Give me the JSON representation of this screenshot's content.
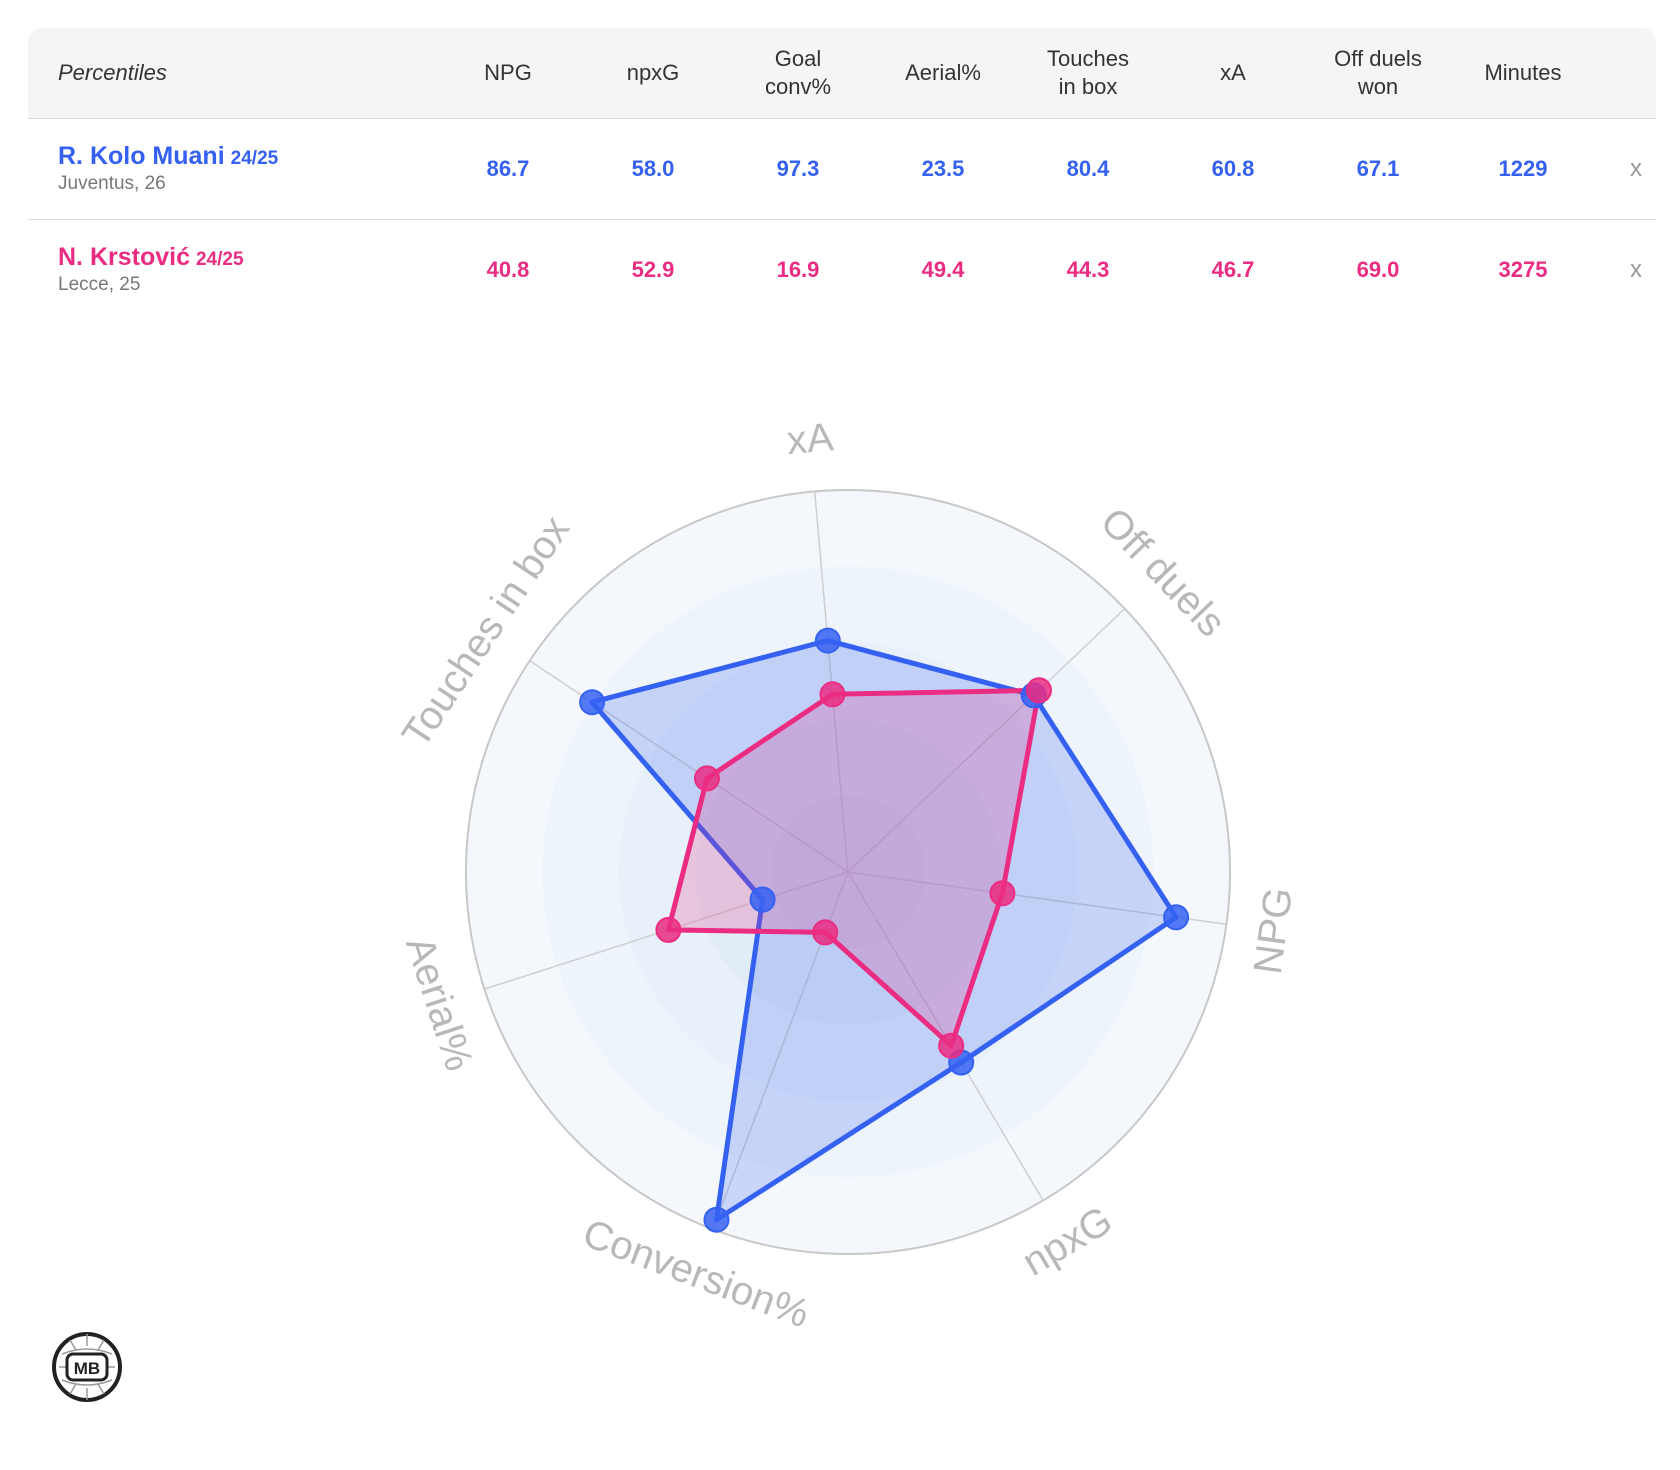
{
  "table": {
    "label_header": "Percentiles",
    "columns": [
      "NPG",
      "npxG",
      "Goal\nconv%",
      "Aerial%",
      "Touches\nin box",
      "xA",
      "Off duels\nwon",
      "Minutes"
    ],
    "remove_label": "x",
    "players": [
      {
        "name": "R. Kolo Muani",
        "season": "24/25",
        "club": "Juventus, 26",
        "color": "#3561f2",
        "values": [
          "86.7",
          "58.0",
          "97.3",
          "23.5",
          "80.4",
          "60.8",
          "67.1",
          "1229"
        ]
      },
      {
        "name": "N. Krstović",
        "season": "24/25",
        "club": "Lecce, 25",
        "color": "#ea2d82",
        "values": [
          "40.8",
          "52.9",
          "16.9",
          "49.4",
          "44.3",
          "46.7",
          "69.0",
          "3275"
        ]
      }
    ]
  },
  "chart_data": {
    "type": "radar",
    "axes": [
      "xA",
      "Off duels",
      "NPG",
      "npxG",
      "Conversion%",
      "Aerial%",
      "Touches in box"
    ],
    "range": [
      0,
      100
    ],
    "series": [
      {
        "name": "R. Kolo Muani",
        "color": "#3561f2",
        "values": [
          60.8,
          67.1,
          86.7,
          58.0,
          97.3,
          23.5,
          80.4
        ]
      },
      {
        "name": "N. Krstović",
        "color": "#ea2d82",
        "values": [
          46.7,
          69.0,
          40.8,
          52.9,
          16.9,
          49.4,
          44.3
        ]
      }
    ]
  },
  "logo_text": "MB"
}
